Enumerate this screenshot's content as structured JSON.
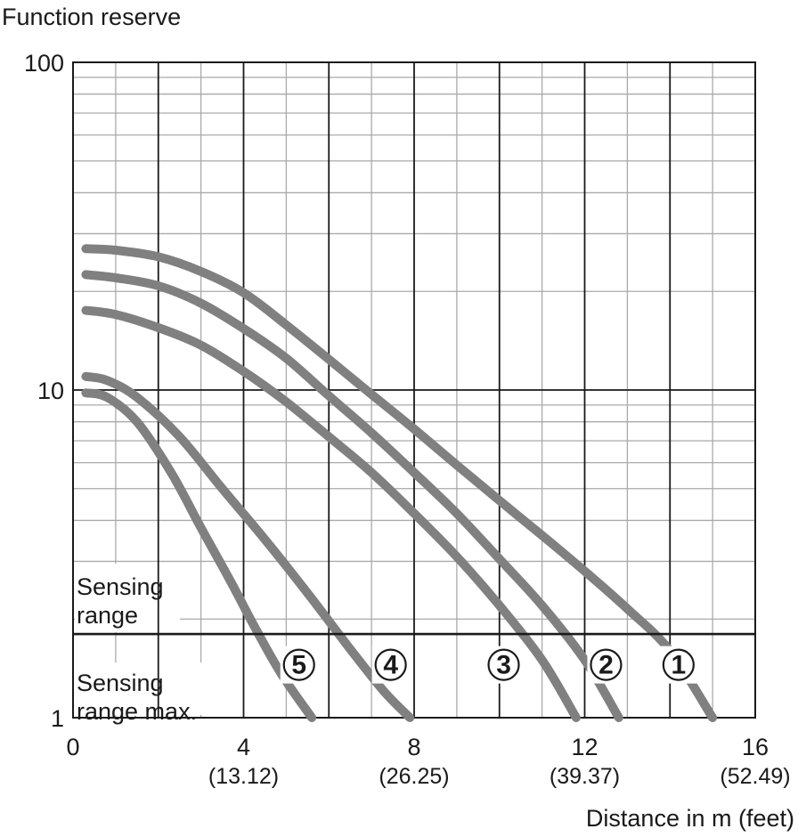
{
  "chart_data": {
    "type": "line",
    "ylabel": "Function reserve",
    "xlabel": "Distance in m (feet)",
    "yscale": "log",
    "xlim": [
      0,
      16
    ],
    "ylim": [
      1,
      100
    ],
    "x_ticks": [
      {
        "value": 0,
        "label": "0",
        "sub": ""
      },
      {
        "value": 4,
        "label": "4",
        "sub": "(13.12)"
      },
      {
        "value": 8,
        "label": "8",
        "sub": "(26.25)"
      },
      {
        "value": 12,
        "label": "12",
        "sub": "(39.37)"
      },
      {
        "value": 16,
        "label": "16",
        "sub": "(52.49)"
      }
    ],
    "y_ticks": [
      {
        "value": 1,
        "label": "1"
      },
      {
        "value": 10,
        "label": "10"
      },
      {
        "value": 100,
        "label": "100"
      }
    ],
    "grid": true,
    "sensing_range_threshold": 1.8,
    "zone_labels": {
      "upper": [
        "Sensing",
        "range"
      ],
      "lower": [
        "Sensing",
        "range max."
      ]
    },
    "curve_color": "#808080",
    "series": [
      {
        "name": "①",
        "label_at": [
          14.2,
          1.45
        ],
        "x": [
          0.3,
          1,
          2,
          3,
          4,
          5,
          6,
          7,
          8,
          9,
          10,
          11,
          12,
          13,
          14,
          15
        ],
        "y": [
          27,
          26.7,
          25.5,
          23,
          19.8,
          15.8,
          12.4,
          9.7,
          7.6,
          5.9,
          4.6,
          3.6,
          2.8,
          2.15,
          1.6,
          1.0
        ]
      },
      {
        "name": "②",
        "label_at": [
          12.5,
          1.45
        ],
        "x": [
          0.3,
          1,
          2,
          3,
          4,
          5,
          6,
          7,
          8,
          9,
          10,
          11,
          12,
          12.8
        ],
        "y": [
          22.5,
          22,
          20.8,
          18.4,
          15.4,
          12.5,
          9.6,
          7.4,
          5.6,
          4.2,
          3.05,
          2.2,
          1.5,
          1.0
        ]
      },
      {
        "name": "③",
        "label_at": [
          10.1,
          1.45
        ],
        "x": [
          0.3,
          1,
          2,
          3,
          4,
          5,
          6,
          7,
          8,
          9,
          10,
          11,
          11.8
        ],
        "y": [
          17.5,
          17,
          15.5,
          13.7,
          11.4,
          9.2,
          7.2,
          5.6,
          4.2,
          3.1,
          2.2,
          1.5,
          1.0
        ]
      },
      {
        "name": "④",
        "label_at": [
          7.45,
          1.45
        ],
        "x": [
          0.3,
          0.8,
          1.5,
          2.5,
          3.5,
          4.5,
          5.5,
          6.5,
          7.3,
          7.9
        ],
        "y": [
          11,
          10.7,
          9.5,
          7.2,
          5.0,
          3.5,
          2.4,
          1.62,
          1.2,
          1.0
        ]
      },
      {
        "name": "⑤",
        "label_at": [
          5.3,
          1.45
        ],
        "x": [
          0.3,
          0.8,
          1.5,
          2.3,
          3.0,
          3.7,
          4.3,
          4.9,
          5.6
        ],
        "y": [
          9.8,
          9.5,
          8.0,
          5.6,
          3.8,
          2.6,
          1.85,
          1.35,
          1.0
        ]
      }
    ]
  }
}
